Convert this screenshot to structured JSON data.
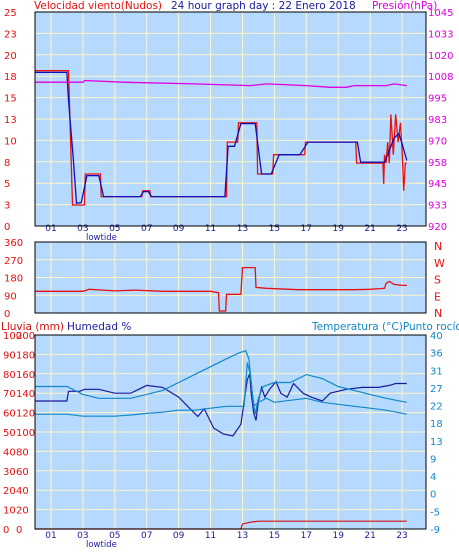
{
  "header": {
    "wind_label": "Velocidad viento(Nudos)",
    "title": "24 hour graph day : 22 Enero 2018",
    "pressure_label": "Presión(hPa)"
  },
  "labels": {
    "rain": "Lluvia (mm)",
    "humidity": "Humedad %",
    "temperature": "Temperatura (°C)Punto rocío",
    "lowtide": "lowtide"
  },
  "colors": {
    "panel": "#b6d9ff",
    "grid": "#fff6c8",
    "wind": "#e81010",
    "wind_avg": "#1010b8",
    "pressure": "#e000e0",
    "direction": "#e81010",
    "humidity": "#1a1a9c",
    "temperature": "#1288c8",
    "rain": "#d01010",
    "left_axis": "#e81010",
    "right_axis_pressure": "#e000e0",
    "right_axis_temp": "#1288c8"
  },
  "chart_data": [
    {
      "type": "line",
      "x_ticks": [
        "01",
        "03",
        "05",
        "07",
        "09",
        "11",
        "13",
        "15",
        "17",
        "19",
        "21",
        "23"
      ],
      "y_left_ticks": [
        "0",
        "3",
        "5",
        "8",
        "10",
        "13",
        "15",
        "18",
        "20",
        "23",
        "25"
      ],
      "y_right_ticks": [
        "920",
        "933",
        "945",
        "958",
        "970",
        "983",
        "995",
        "1008",
        "1020",
        "1033",
        "1045"
      ],
      "xlim": [
        0,
        24.5
      ],
      "ylim": [
        0,
        25.5
      ],
      "y2lim": [
        920,
        1045
      ],
      "series": [
        {
          "name": "Velocidad viento",
          "axis": "left",
          "points": [
            [
              0,
              18.5
            ],
            [
              2.1,
              18.5
            ],
            [
              2.35,
              2.5
            ],
            [
              3.1,
              2.5
            ],
            [
              3.15,
              6.2
            ],
            [
              4.1,
              6.2
            ],
            [
              4.15,
              3.5
            ],
            [
              6.7,
              3.5
            ],
            [
              6.75,
              4.2
            ],
            [
              7.2,
              4.2
            ],
            [
              7.25,
              3.5
            ],
            [
              12.0,
              3.5
            ],
            [
              12.05,
              10.0
            ],
            [
              12.7,
              10.0
            ],
            [
              12.75,
              12.3
            ],
            [
              13.9,
              12.3
            ],
            [
              13.95,
              6.2
            ],
            [
              14.9,
              6.2
            ],
            [
              14.95,
              8.5
            ],
            [
              16.9,
              8.5
            ],
            [
              16.95,
              10.0
            ],
            [
              20.1,
              10.0
            ],
            [
              20.15,
              7.5
            ],
            [
              21.8,
              7.5
            ],
            [
              21.85,
              5.0
            ],
            [
              21.9,
              8.5
            ],
            [
              22.0,
              7.5
            ],
            [
              22.1,
              10.0
            ],
            [
              22.2,
              7.5
            ],
            [
              22.3,
              13.3
            ],
            [
              22.45,
              8.5
            ],
            [
              22.6,
              13.3
            ],
            [
              22.75,
              10.0
            ],
            [
              22.9,
              12.3
            ],
            [
              23.0,
              9.0
            ],
            [
              23.1,
              4.2
            ],
            [
              23.2,
              7.5
            ],
            [
              23.3,
              7.5
            ]
          ]
        },
        {
          "name": "Velocidad media",
          "axis": "left",
          "points": [
            [
              0,
              18.3
            ],
            [
              2.0,
              18.3
            ],
            [
              2.1,
              15.0
            ],
            [
              2.4,
              8.0
            ],
            [
              2.6,
              2.7
            ],
            [
              2.9,
              2.8
            ],
            [
              3.25,
              6.0
            ],
            [
              4.0,
              6.0
            ],
            [
              4.3,
              3.5
            ],
            [
              6.6,
              3.5
            ],
            [
              6.8,
              4.1
            ],
            [
              7.1,
              4.1
            ],
            [
              7.3,
              3.5
            ],
            [
              11.9,
              3.5
            ],
            [
              12.1,
              9.5
            ],
            [
              12.5,
              9.5
            ],
            [
              12.9,
              12.2
            ],
            [
              13.8,
              12.2
            ],
            [
              14.2,
              6.2
            ],
            [
              14.8,
              6.2
            ],
            [
              15.3,
              8.5
            ],
            [
              16.6,
              8.5
            ],
            [
              17.1,
              10.0
            ],
            [
              20.2,
              10.0
            ],
            [
              20.4,
              7.6
            ],
            [
              21.9,
              7.6
            ],
            [
              22.2,
              9.0
            ],
            [
              22.5,
              10.5
            ],
            [
              22.8,
              11.0
            ],
            [
              23.0,
              9.8
            ],
            [
              23.3,
              7.8
            ]
          ]
        },
        {
          "name": "Presión",
          "axis": "right",
          "points": [
            [
              0,
              1004
            ],
            [
              3.0,
              1004
            ],
            [
              3.1,
              1005
            ],
            [
              5.5,
              1004
            ],
            [
              10.0,
              1003
            ],
            [
              13.5,
              1002
            ],
            [
              14.5,
              1003
            ],
            [
              17.0,
              1002
            ],
            [
              18.5,
              1001
            ],
            [
              19.5,
              1001
            ],
            [
              20.0,
              1002
            ],
            [
              22.0,
              1002
            ],
            [
              22.5,
              1003
            ],
            [
              23.3,
              1002
            ]
          ]
        }
      ]
    },
    {
      "type": "line",
      "y_ticks": [
        "0",
        "90",
        "180",
        "270",
        "360"
      ],
      "y_right_labels": [
        "N",
        "W",
        "S",
        "E",
        "N"
      ],
      "xlim": [
        0,
        24.5
      ],
      "ylim": [
        0,
        360
      ],
      "series": [
        {
          "name": "Dirección viento",
          "points": [
            [
              0,
              110
            ],
            [
              3.0,
              110
            ],
            [
              3.4,
              120
            ],
            [
              5.0,
              112
            ],
            [
              6.3,
              116
            ],
            [
              8.0,
              110
            ],
            [
              11.0,
              110
            ],
            [
              11.5,
              103
            ],
            [
              11.55,
              10
            ],
            [
              11.95,
              10
            ],
            [
              12.0,
              95
            ],
            [
              12.9,
              95
            ],
            [
              13.0,
              230
            ],
            [
              13.8,
              230
            ],
            [
              13.85,
              130
            ],
            [
              14.5,
              125
            ],
            [
              16.5,
              118
            ],
            [
              20.0,
              118
            ],
            [
              21.0,
              120
            ],
            [
              21.9,
              125
            ],
            [
              22.0,
              150
            ],
            [
              22.2,
              160
            ],
            [
              22.5,
              145
            ],
            [
              23.0,
              140
            ],
            [
              23.3,
              140
            ]
          ]
        }
      ]
    },
    {
      "type": "line",
      "y_left_ticks": [
        "0",
        "20",
        "40",
        "60",
        "80",
        "100",
        "120",
        "140",
        "160",
        "180",
        "200"
      ],
      "y_humidity_ticks": [
        "0",
        "10",
        "20",
        "30",
        "40",
        "50",
        "60",
        "70",
        "80",
        "90",
        "100"
      ],
      "y_right_ticks": [
        "-9",
        "-5",
        "0",
        "4",
        "9",
        "13",
        "18",
        "22",
        "27",
        "31",
        "36",
        "40"
      ],
      "xlim": [
        0,
        24.5
      ],
      "ylim_humidity": [
        0,
        100
      ],
      "ylim_rain": [
        0,
        200
      ],
      "ylim_temp": [
        -9,
        40
      ],
      "series": [
        {
          "name": "Humedad",
          "axis": "humidity",
          "points": [
            [
              0,
              66
            ],
            [
              2.0,
              66
            ],
            [
              2.1,
              71
            ],
            [
              2.8,
              71
            ],
            [
              3.1,
              72
            ],
            [
              4.0,
              72
            ],
            [
              5.0,
              70
            ],
            [
              6.0,
              70
            ],
            [
              7.0,
              74
            ],
            [
              8.0,
              73
            ],
            [
              9.0,
              68
            ],
            [
              9.6,
              63
            ],
            [
              10.2,
              58
            ],
            [
              10.6,
              62
            ],
            [
              11.2,
              52
            ],
            [
              11.8,
              49
            ],
            [
              12.4,
              48
            ],
            [
              12.9,
              54
            ],
            [
              13.3,
              77
            ],
            [
              13.45,
              80
            ],
            [
              13.55,
              70
            ],
            [
              13.7,
              60
            ],
            [
              13.85,
              56
            ],
            [
              14.0,
              66
            ],
            [
              14.2,
              73
            ],
            [
              14.4,
              68
            ],
            [
              14.7,
              72
            ],
            [
              15.1,
              76
            ],
            [
              15.4,
              70
            ],
            [
              15.8,
              68
            ],
            [
              16.2,
              75
            ],
            [
              16.8,
              70
            ],
            [
              17.3,
              68
            ],
            [
              18.0,
              66
            ],
            [
              18.5,
              70
            ],
            [
              19.5,
              72
            ],
            [
              20.5,
              73
            ],
            [
              21.5,
              73
            ],
            [
              22.2,
              74
            ],
            [
              22.6,
              75
            ],
            [
              23.3,
              75
            ]
          ]
        },
        {
          "name": "Temperatura",
          "axis": "temp",
          "points": [
            [
              0,
              27
            ],
            [
              2.0,
              27
            ],
            [
              2.5,
              26
            ],
            [
              3.0,
              25
            ],
            [
              4.0,
              24
            ],
            [
              5.0,
              24
            ],
            [
              6.0,
              24
            ],
            [
              7.0,
              25
            ],
            [
              8.0,
              26
            ],
            [
              9.0,
              28
            ],
            [
              10.0,
              30
            ],
            [
              11.0,
              32
            ],
            [
              12.0,
              34
            ],
            [
              12.8,
              35.5
            ],
            [
              13.2,
              36
            ],
            [
              13.4,
              34
            ],
            [
              13.6,
              26
            ],
            [
              13.8,
              20
            ],
            [
              14.0,
              24
            ],
            [
              14.3,
              27
            ],
            [
              15.0,
              28
            ],
            [
              16.0,
              28
            ],
            [
              17.0,
              30
            ],
            [
              18.0,
              29
            ],
            [
              19.0,
              27
            ],
            [
              20.0,
              26
            ],
            [
              21.0,
              25
            ],
            [
              22.0,
              24
            ],
            [
              23.3,
              23
            ]
          ]
        },
        {
          "name": "Punto rocío",
          "axis": "temp",
          "points": [
            [
              0,
              20
            ],
            [
              2.0,
              20
            ],
            [
              3.0,
              19.5
            ],
            [
              4.0,
              19.5
            ],
            [
              5.0,
              19.5
            ],
            [
              6.0,
              19.8
            ],
            [
              7.0,
              20.2
            ],
            [
              8.0,
              20.5
            ],
            [
              9.0,
              21
            ],
            [
              10.0,
              21
            ],
            [
              11.0,
              21.5
            ],
            [
              12.0,
              22
            ],
            [
              12.8,
              22
            ],
            [
              13.1,
              22
            ],
            [
              13.3,
              33
            ],
            [
              13.5,
              30
            ],
            [
              13.7,
              22
            ],
            [
              14.0,
              23
            ],
            [
              14.5,
              24
            ],
            [
              15.0,
              23
            ],
            [
              16.0,
              23.5
            ],
            [
              17.0,
              24
            ],
            [
              18.0,
              23
            ],
            [
              19.0,
              22.5
            ],
            [
              20.0,
              22
            ],
            [
              21.0,
              21.5
            ],
            [
              22.0,
              21
            ],
            [
              23.3,
              20
            ]
          ]
        },
        {
          "name": "Lluvia",
          "axis": "rain",
          "points": [
            [
              0,
              0
            ],
            [
              12.9,
              0
            ],
            [
              13.0,
              5
            ],
            [
              13.5,
              7
            ],
            [
              14.0,
              8
            ],
            [
              23.3,
              8
            ]
          ]
        }
      ]
    }
  ]
}
